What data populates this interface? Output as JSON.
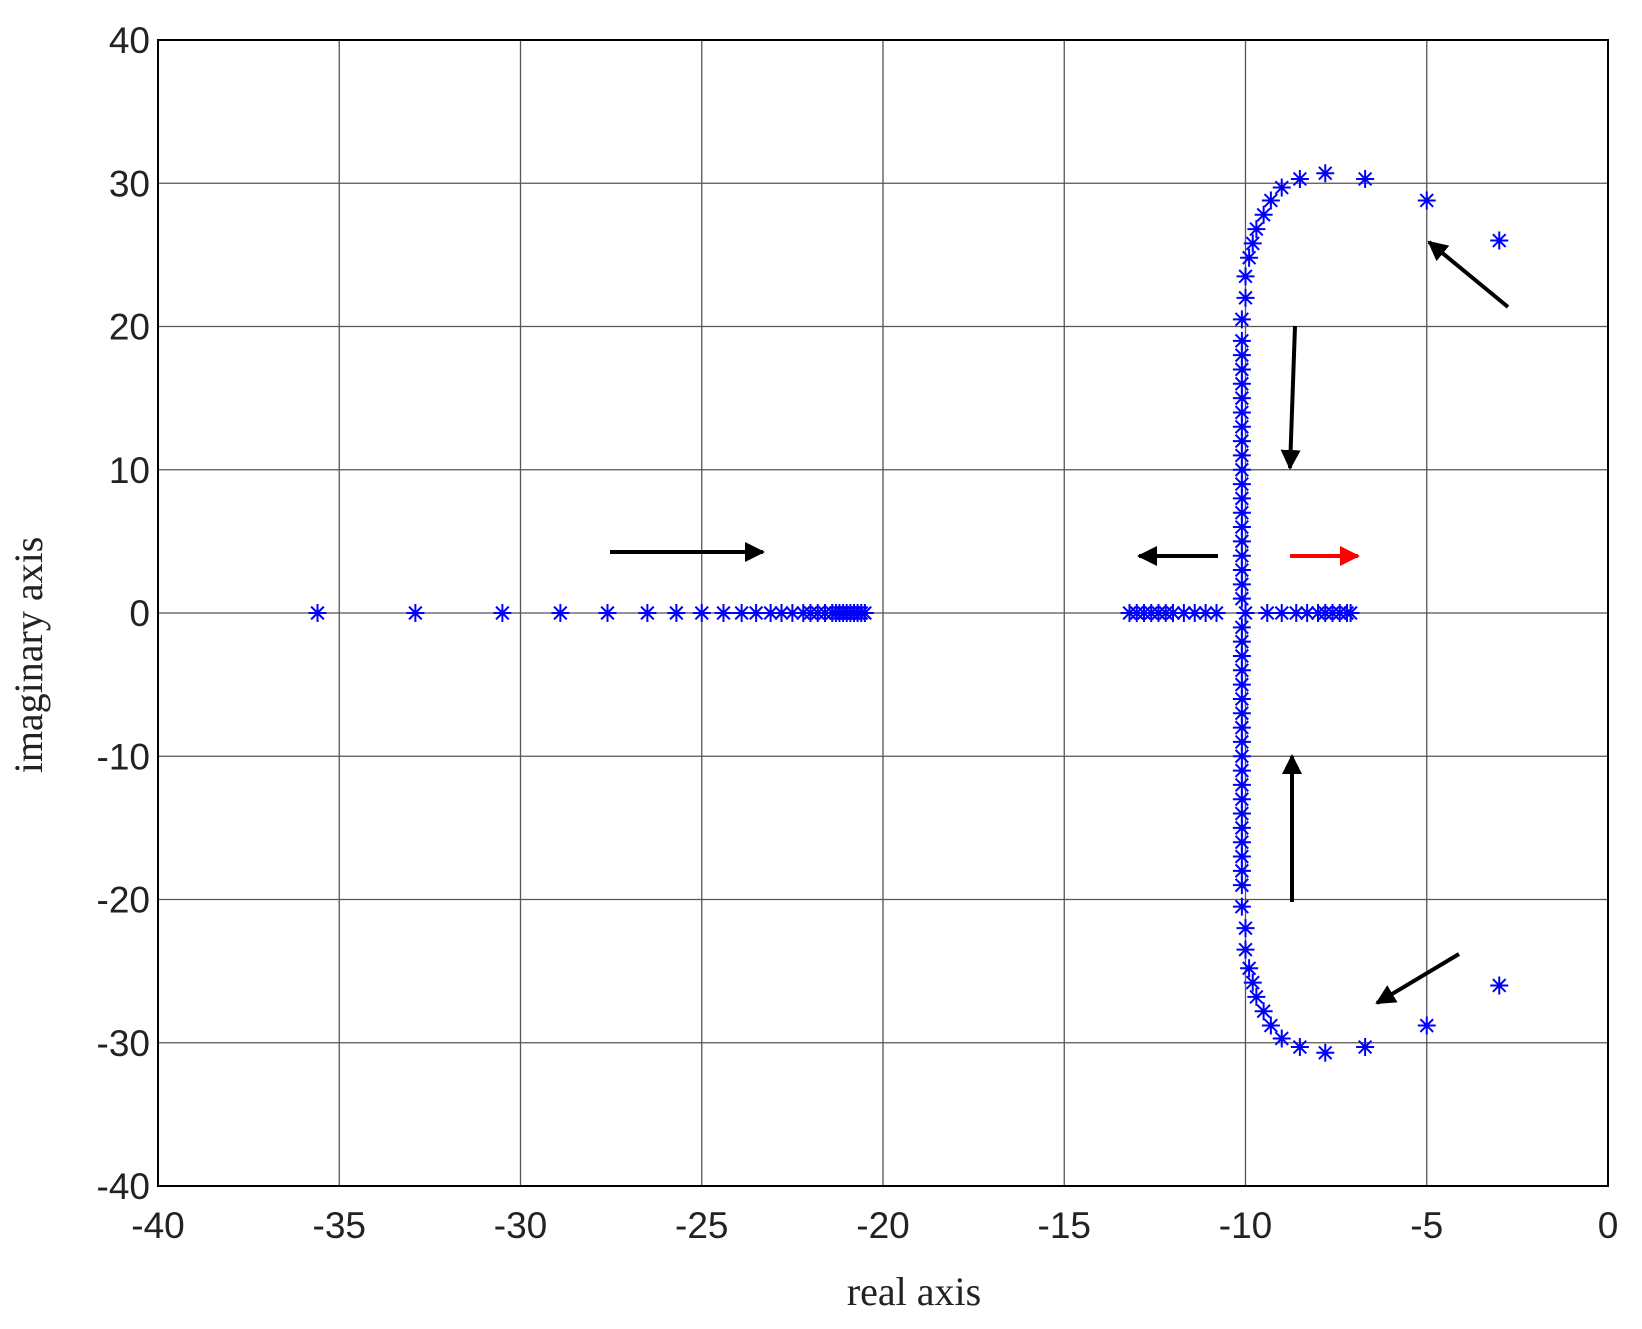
{
  "chart_data": {
    "type": "scatter",
    "x_label": "real axis",
    "y_label": "imaginary axis",
    "color": "#0000ff",
    "xlim": [
      -40,
      0
    ],
    "ylim": [
      -40,
      40
    ],
    "xticks": [
      -40,
      -35,
      -30,
      -25,
      -20,
      -15,
      -10,
      -5,
      0
    ],
    "yticks": [
      -40,
      -30,
      -20,
      -10,
      0,
      10,
      20,
      30,
      40
    ],
    "grid": true,
    "x": [
      -35.6,
      -32.9,
      -30.5,
      -28.9,
      -27.6,
      -26.5,
      -25.7,
      -25.0,
      -24.4,
      -23.9,
      -23.5,
      -23.1,
      -22.8,
      -22.5,
      -22.2,
      -22.0,
      -21.8,
      -21.6,
      -21.4,
      -21.3,
      -21.2,
      -21.1,
      -21.0,
      -20.9,
      -20.8,
      -20.7,
      -20.6,
      -20.5,
      -13.2,
      -13.0,
      -12.8,
      -12.6,
      -12.4,
      -12.2,
      -12.0,
      -11.7,
      -11.4,
      -11.1,
      -10.8,
      -10.0,
      -9.4,
      -9.0,
      -8.6,
      -8.3,
      -8.0,
      -7.8,
      -7.6,
      -7.4,
      -7.2,
      -7.1,
      -3,
      -5,
      -6.7,
      -7.8,
      -8.5,
      -9,
      -9.3,
      -9.5,
      -9.7,
      -9.8,
      -9.9,
      -10,
      -10,
      -10.1,
      -10.1,
      -10.1,
      -10.1,
      -10.1,
      -10.1,
      -10.1,
      -10.1,
      -10.1,
      -10.1,
      -10.1,
      -10.1,
      -10.1,
      -10.1,
      -10.1,
      -10.1,
      -10.1,
      -10.1,
      -10.1,
      -10.1,
      -3,
      -5,
      -6.7,
      -7.8,
      -8.5,
      -9,
      -9.3,
      -9.5,
      -9.7,
      -9.8,
      -9.9,
      -10,
      -10,
      -10.1,
      -10.1,
      -10.1,
      -10.1,
      -10.1,
      -10.1,
      -10.1,
      -10.1,
      -10.1,
      -10.1,
      -10.1,
      -10.1,
      -10.1,
      -10.1,
      -10.1,
      -10.1,
      -10.1,
      -10.1,
      -10.1,
      -10.1
    ],
    "y": [
      0,
      0,
      0,
      0,
      0,
      0,
      0,
      0,
      0,
      0,
      0,
      0,
      0,
      0,
      0,
      0,
      0,
      0,
      0,
      0,
      0,
      0,
      0,
      0,
      0,
      0,
      0,
      0,
      0,
      0,
      0,
      0,
      0,
      0,
      0,
      0,
      0,
      0,
      0,
      0,
      0,
      0,
      0,
      0,
      0,
      0,
      0,
      0,
      0,
      0,
      26,
      28.8,
      30.3,
      30.7,
      30.3,
      29.7,
      28.8,
      27.8,
      26.8,
      25.8,
      24.8,
      23.5,
      22,
      20.5,
      19,
      18,
      17,
      16,
      15,
      14,
      13,
      12,
      11,
      10,
      9,
      8,
      7,
      6,
      5,
      4,
      3,
      2,
      1,
      -26,
      -28.8,
      -30.3,
      -30.7,
      -30.3,
      -29.7,
      -28.8,
      -27.8,
      -26.8,
      -25.8,
      -24.8,
      -23.5,
      -22,
      -20.5,
      -19,
      -18,
      -17,
      -16,
      -15,
      -14,
      -13,
      -12,
      -11,
      -10,
      -9,
      -8,
      -7,
      -6,
      -5,
      -4,
      -3,
      -2,
      -1
    ]
  }
}
